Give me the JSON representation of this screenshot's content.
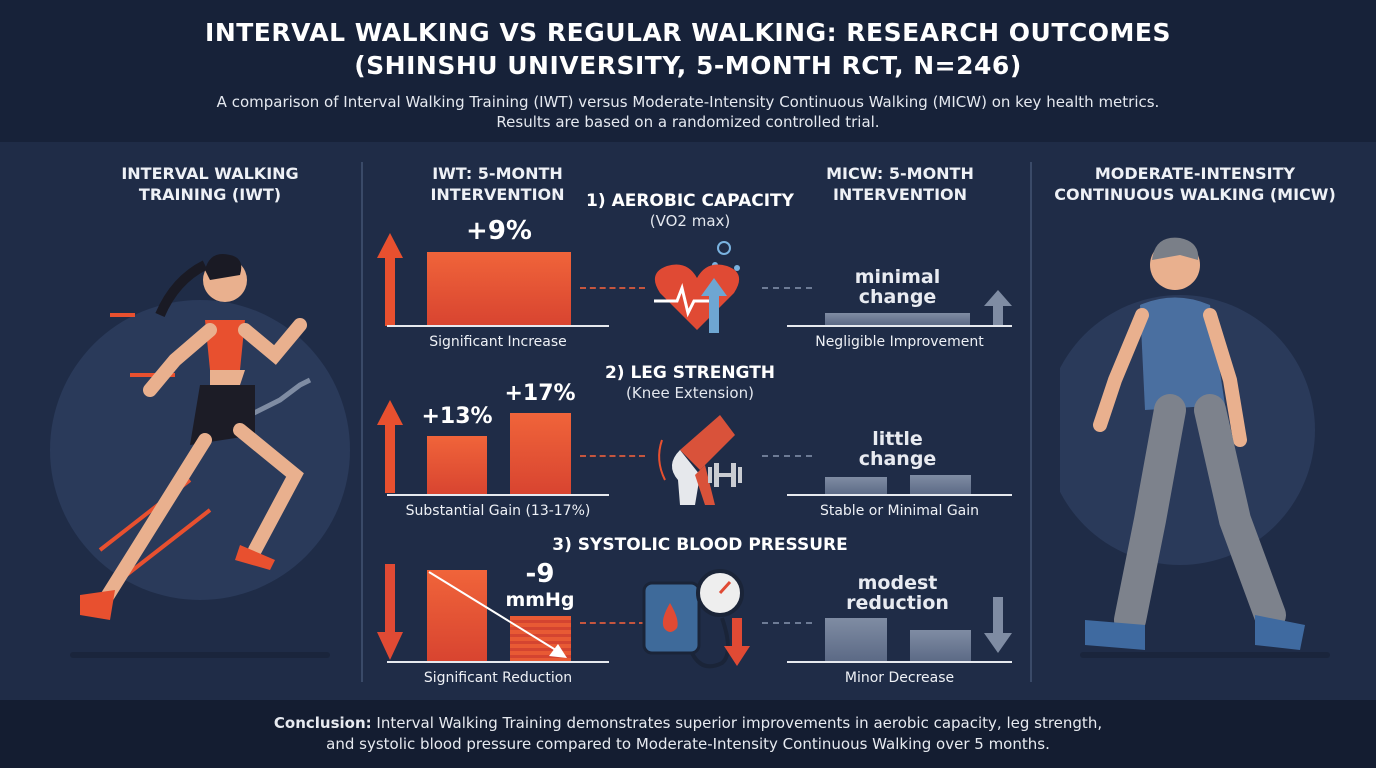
{
  "header": {
    "title_line1": "INTERVAL WALKING VS REGULAR WALKING: RESEARCH OUTCOMES",
    "title_line2": "(SHINSHU UNIVERSITY, 5-MONTH RCT, N=246)",
    "subtitle_line1": "A comparison of Interval Walking Training (IWT) versus Moderate-Intensity Continuous Walking (MICW) on key health metrics.",
    "subtitle_line2": "Results are based on a randomized controlled trial."
  },
  "left_panel": {
    "title_line1": "INTERVAL WALKING",
    "title_line2": "TRAINING (IWT)"
  },
  "right_panel": {
    "title_line1": "MODERATE-INTENSITY",
    "title_line2": "CONTINUOUS WALKING (MICW)"
  },
  "iwt_column": {
    "title_line1": "IWT: 5-MONTH",
    "title_line2": "INTERVENTION"
  },
  "micw_column": {
    "title_line1": "MICW: 5-MONTH",
    "title_line2": "INTERVENTION"
  },
  "metrics": [
    {
      "title": "1) AEROBIC CAPACITY",
      "subtitle": "(VO2 max)",
      "iwt_values": [
        "+9%"
      ],
      "iwt_caption": "Significant Increase",
      "micw_label_line1": "minimal",
      "micw_label_line2": "change",
      "micw_caption": "Negligible Improvement",
      "icon": "heart-icon"
    },
    {
      "title": "2) LEG STRENGTH",
      "subtitle": "(Knee Extension)",
      "iwt_values": [
        "+13%",
        "+17%"
      ],
      "iwt_caption": "Substantial Gain (13-17%)",
      "micw_label_line1": "little",
      "micw_label_line2": "change",
      "micw_caption": "Stable or Minimal Gain",
      "icon": "knee-icon"
    },
    {
      "title": "3) SYSTOLIC BLOOD PRESSURE",
      "subtitle": "",
      "iwt_values": [
        "-9",
        "mmHg"
      ],
      "iwt_caption": "Significant Reduction",
      "micw_label_line1": "modest",
      "micw_label_line2": "reduction",
      "micw_caption": "Minor Decrease",
      "icon": "blood-pressure-icon"
    }
  ],
  "footer": {
    "bold": "Conclusion:",
    "text_line1": " Interval Walking Training demonstrates superior improvements in aerobic capacity, leg strength,",
    "text_line2": "and systolic blood pressure compared to Moderate-Intensity Continuous Walking over 5 months."
  },
  "colors": {
    "accent": "#e8502f",
    "micw": "#6b7a94",
    "background": "#1f2c47"
  }
}
